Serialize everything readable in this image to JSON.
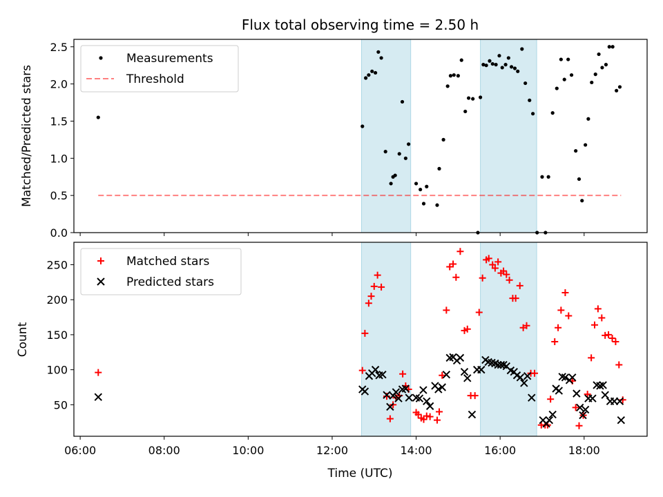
{
  "title": "Flux total observing time = 2.50 h",
  "colors": {
    "shade": "#add8e6",
    "threshold": "#ff0000",
    "measurement": "#000000",
    "matched": "#ff0000",
    "predicted": "#000000"
  },
  "chart_data": [
    {
      "type": "scatter",
      "panel": "top",
      "ylabel": "Matched/Predicted stars",
      "ylim": [
        0,
        2.6
      ],
      "yticks": [
        0.0,
        0.5,
        1.0,
        1.5,
        2.0,
        2.5
      ],
      "ytick_labels": [
        "0.0",
        "0.5",
        "1.0",
        "1.5",
        "2.0",
        "2.5"
      ],
      "xlim": [
        5.85,
        19.5
      ],
      "legend": {
        "placement": "top-left",
        "entries": [
          "Measurements",
          "Threshold"
        ]
      },
      "shaded_intervals": [
        [
          12.7,
          13.87
        ],
        [
          15.53,
          16.87
        ]
      ],
      "threshold": {
        "name": "Threshold",
        "value": 0.5,
        "x_range": [
          6.43,
          18.88
        ]
      },
      "series": [
        {
          "name": "Measurements",
          "points": [
            [
              6.43,
              1.55
            ],
            [
              12.72,
              1.43
            ],
            [
              12.8,
              2.08
            ],
            [
              12.87,
              2.12
            ],
            [
              12.95,
              2.17
            ],
            [
              13.03,
              2.15
            ],
            [
              13.1,
              2.43
            ],
            [
              13.17,
              2.35
            ],
            [
              13.27,
              1.09
            ],
            [
              13.4,
              0.66
            ],
            [
              13.45,
              0.75
            ],
            [
              13.5,
              0.77
            ],
            [
              13.6,
              1.06
            ],
            [
              13.67,
              1.76
            ],
            [
              13.75,
              1.0
            ],
            [
              13.82,
              1.19
            ],
            [
              14.0,
              0.66
            ],
            [
              14.1,
              0.58
            ],
            [
              14.18,
              0.39
            ],
            [
              14.25,
              0.62
            ],
            [
              14.5,
              0.37
            ],
            [
              14.55,
              0.86
            ],
            [
              14.65,
              1.25
            ],
            [
              14.75,
              1.97
            ],
            [
              14.82,
              2.11
            ],
            [
              14.9,
              2.12
            ],
            [
              15.0,
              2.11
            ],
            [
              15.08,
              2.32
            ],
            [
              15.17,
              1.63
            ],
            [
              15.25,
              1.81
            ],
            [
              15.35,
              1.8
            ],
            [
              15.47,
              0.0
            ],
            [
              15.53,
              1.82
            ],
            [
              15.6,
              2.26
            ],
            [
              15.67,
              2.25
            ],
            [
              15.75,
              2.31
            ],
            [
              15.82,
              2.27
            ],
            [
              15.9,
              2.26
            ],
            [
              15.98,
              2.38
            ],
            [
              16.05,
              2.22
            ],
            [
              16.13,
              2.26
            ],
            [
              16.2,
              2.35
            ],
            [
              16.27,
              2.23
            ],
            [
              16.35,
              2.21
            ],
            [
              16.42,
              2.17
            ],
            [
              16.52,
              2.47
            ],
            [
              16.6,
              2.01
            ],
            [
              16.7,
              1.78
            ],
            [
              16.78,
              1.6
            ],
            [
              16.88,
              0.0
            ],
            [
              17.0,
              0.75
            ],
            [
              17.08,
              0.0
            ],
            [
              17.15,
              0.75
            ],
            [
              17.25,
              1.61
            ],
            [
              17.35,
              1.94
            ],
            [
              17.45,
              2.33
            ],
            [
              17.53,
              2.06
            ],
            [
              17.62,
              2.33
            ],
            [
              17.7,
              2.12
            ],
            [
              17.8,
              1.1
            ],
            [
              17.88,
              0.72
            ],
            [
              17.95,
              0.43
            ],
            [
              18.03,
              1.18
            ],
            [
              18.1,
              1.53
            ],
            [
              18.18,
              2.02
            ],
            [
              18.27,
              2.13
            ],
            [
              18.35,
              2.4
            ],
            [
              18.43,
              2.22
            ],
            [
              18.52,
              2.26
            ],
            [
              18.6,
              2.5
            ],
            [
              18.68,
              2.5
            ],
            [
              18.77,
              1.91
            ],
            [
              18.85,
              1.96
            ]
          ]
        }
      ]
    },
    {
      "type": "scatter",
      "panel": "bottom",
      "xlabel": "Time (UTC)",
      "ylabel": "Count",
      "ylim": [
        5,
        282
      ],
      "yticks": [
        50,
        100,
        150,
        200,
        250
      ],
      "ytick_labels": [
        "50",
        "100",
        "150",
        "200",
        "250"
      ],
      "xlim": [
        5.85,
        19.5
      ],
      "xticks": [
        6,
        8,
        10,
        12,
        14,
        16,
        18
      ],
      "xtick_labels": [
        "06:00",
        "08:00",
        "10:00",
        "12:00",
        "14:00",
        "16:00",
        "18:00"
      ],
      "legend": {
        "placement": "top-left",
        "entries": [
          "Matched stars",
          "Predicted stars"
        ]
      },
      "shaded_intervals": [
        [
          12.7,
          13.87
        ],
        [
          15.53,
          16.87
        ]
      ],
      "series": [
        {
          "name": "Matched stars",
          "points": [
            [
              6.43,
              96
            ],
            [
              12.72,
              99
            ],
            [
              12.78,
              152
            ],
            [
              12.87,
              195
            ],
            [
              12.93,
              205
            ],
            [
              13.0,
              219
            ],
            [
              13.08,
              235
            ],
            [
              13.17,
              218
            ],
            [
              13.3,
              62
            ],
            [
              13.38,
              30
            ],
            [
              13.45,
              50
            ],
            [
              13.52,
              60
            ],
            [
              13.6,
              63
            ],
            [
              13.68,
              94
            ],
            [
              13.75,
              77
            ],
            [
              13.82,
              72
            ],
            [
              14.0,
              39
            ],
            [
              14.05,
              36
            ],
            [
              14.12,
              31
            ],
            [
              14.18,
              29
            ],
            [
              14.25,
              34
            ],
            [
              14.33,
              33
            ],
            [
              14.5,
              28
            ],
            [
              14.55,
              40
            ],
            [
              14.62,
              92
            ],
            [
              14.72,
              185
            ],
            [
              14.8,
              247
            ],
            [
              14.88,
              251
            ],
            [
              14.95,
              232
            ],
            [
              15.05,
              269
            ],
            [
              15.15,
              156
            ],
            [
              15.22,
              158
            ],
            [
              15.3,
              63
            ],
            [
              15.4,
              63
            ],
            [
              15.5,
              182
            ],
            [
              15.58,
              231
            ],
            [
              15.67,
              257
            ],
            [
              15.73,
              259
            ],
            [
              15.82,
              250
            ],
            [
              15.88,
              245
            ],
            [
              15.95,
              254
            ],
            [
              16.02,
              238
            ],
            [
              16.08,
              241
            ],
            [
              16.15,
              236
            ],
            [
              16.22,
              228
            ],
            [
              16.3,
              202
            ],
            [
              16.37,
              202
            ],
            [
              16.47,
              220
            ],
            [
              16.55,
              160
            ],
            [
              16.63,
              163
            ],
            [
              16.73,
              95
            ],
            [
              16.82,
              95
            ],
            [
              16.98,
              21
            ],
            [
              17.07,
              21
            ],
            [
              17.13,
              21
            ],
            [
              17.2,
              58
            ],
            [
              17.3,
              140
            ],
            [
              17.38,
              160
            ],
            [
              17.45,
              185
            ],
            [
              17.55,
              210
            ],
            [
              17.63,
              177
            ],
            [
              17.72,
              84
            ],
            [
              17.8,
              46
            ],
            [
              17.88,
              20
            ],
            [
              17.98,
              35
            ],
            [
              18.08,
              65
            ],
            [
              18.17,
              117
            ],
            [
              18.25,
              164
            ],
            [
              18.33,
              187
            ],
            [
              18.42,
              174
            ],
            [
              18.5,
              149
            ],
            [
              18.58,
              150
            ],
            [
              18.67,
              145
            ],
            [
              18.75,
              140
            ],
            [
              18.83,
              107
            ],
            [
              18.92,
              57
            ]
          ]
        },
        {
          "name": "Predicted stars",
          "points": [
            [
              6.43,
              61
            ],
            [
              12.72,
              72
            ],
            [
              12.78,
              69
            ],
            [
              12.88,
              91
            ],
            [
              12.95,
              95
            ],
            [
              13.03,
              100
            ],
            [
              13.12,
              92
            ],
            [
              13.2,
              93
            ],
            [
              13.3,
              64
            ],
            [
              13.38,
              47
            ],
            [
              13.45,
              63
            ],
            [
              13.52,
              68
            ],
            [
              13.58,
              59
            ],
            [
              13.67,
              72
            ],
            [
              13.75,
              73
            ],
            [
              13.83,
              60
            ],
            [
              14.0,
              60
            ],
            [
              14.08,
              59
            ],
            [
              14.17,
              71
            ],
            [
              14.25,
              55
            ],
            [
              14.33,
              48
            ],
            [
              14.45,
              77
            ],
            [
              14.53,
              72
            ],
            [
              14.62,
              75
            ],
            [
              14.72,
              93
            ],
            [
              14.8,
              117
            ],
            [
              14.88,
              118
            ],
            [
              14.97,
              113
            ],
            [
              15.05,
              117
            ],
            [
              15.15,
              97
            ],
            [
              15.22,
              88
            ],
            [
              15.33,
              36
            ],
            [
              15.45,
              100
            ],
            [
              15.55,
              100
            ],
            [
              15.65,
              114
            ],
            [
              15.72,
              111
            ],
            [
              15.8,
              110
            ],
            [
              15.88,
              109
            ],
            [
              15.95,
              107
            ],
            [
              16.02,
              107
            ],
            [
              16.08,
              107
            ],
            [
              16.15,
              105
            ],
            [
              16.25,
              99
            ],
            [
              16.33,
              97
            ],
            [
              16.4,
              92
            ],
            [
              16.48,
              89
            ],
            [
              16.57,
              81
            ],
            [
              16.65,
              91
            ],
            [
              16.75,
              60
            ],
            [
              17.02,
              28
            ],
            [
              17.1,
              23
            ],
            [
              17.17,
              28
            ],
            [
              17.25,
              36
            ],
            [
              17.33,
              73
            ],
            [
              17.4,
              70
            ],
            [
              17.48,
              90
            ],
            [
              17.55,
              89
            ],
            [
              17.65,
              85
            ],
            [
              17.72,
              89
            ],
            [
              17.82,
              66
            ],
            [
              17.9,
              46
            ],
            [
              17.97,
              35
            ],
            [
              18.03,
              43
            ],
            [
              18.1,
              59
            ],
            [
              18.2,
              59
            ],
            [
              18.3,
              78
            ],
            [
              18.38,
              77
            ],
            [
              18.45,
              78
            ],
            [
              18.5,
              64
            ],
            [
              18.62,
              55
            ],
            [
              18.72,
              55
            ],
            [
              18.85,
              55
            ],
            [
              18.88,
              28
            ]
          ]
        }
      ]
    }
  ]
}
